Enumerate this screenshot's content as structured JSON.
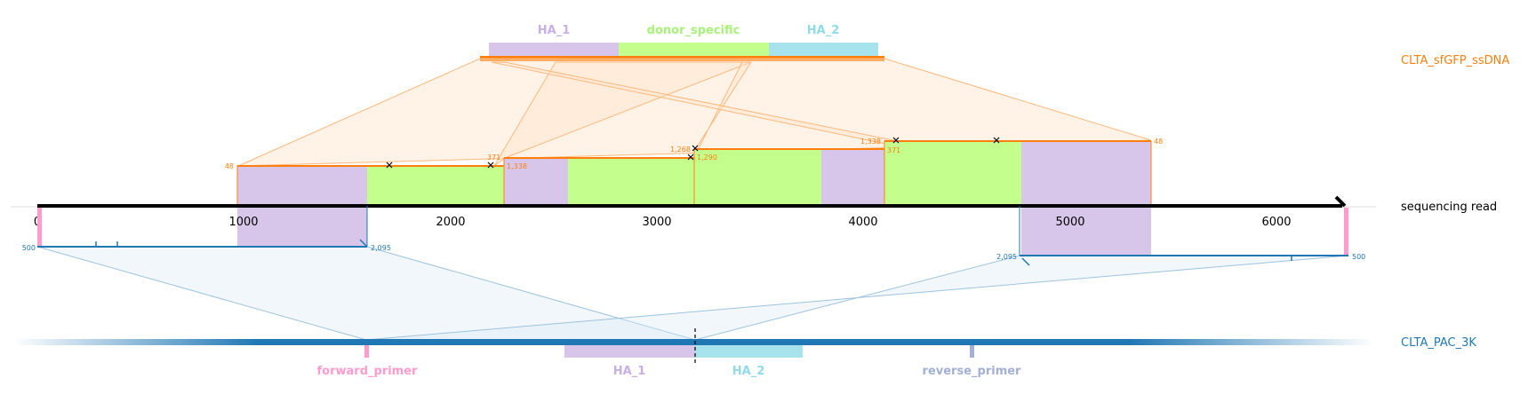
{
  "donor": {
    "name": "CLTA_sfGFP_ssDNA",
    "features": [
      {
        "label": "HA_1",
        "color": "#d7c6ea"
      },
      {
        "label": "donor_specific",
        "color": "#c4ff8d"
      },
      {
        "label": "HA_2",
        "color": "#a7e3ec"
      }
    ],
    "color": "#ff7f0e"
  },
  "read": {
    "name": "sequencing read",
    "axis_ticks": [
      "0",
      "1000",
      "2000",
      "3000",
      "4000",
      "5000",
      "6000"
    ]
  },
  "reference": {
    "name": "CLTA_PAC_3K",
    "color": "#1f77b4",
    "features": [
      {
        "label": "forward_primer",
        "color": "#ff9ccd"
      },
      {
        "label": "HA_1",
        "color": "#d7c6ea"
      },
      {
        "label": "HA_2",
        "color": "#a7e3ec"
      },
      {
        "label": "reverse_primer",
        "color": "#a3b0d6"
      }
    ]
  },
  "donor_alignment_labels": [
    "48",
    "371",
    "1,338",
    "1,268",
    "1,290",
    "1,338",
    "371",
    "48"
  ],
  "reference_alignment_labels": [
    "500",
    "2,095",
    "2,095",
    "500"
  ]
}
